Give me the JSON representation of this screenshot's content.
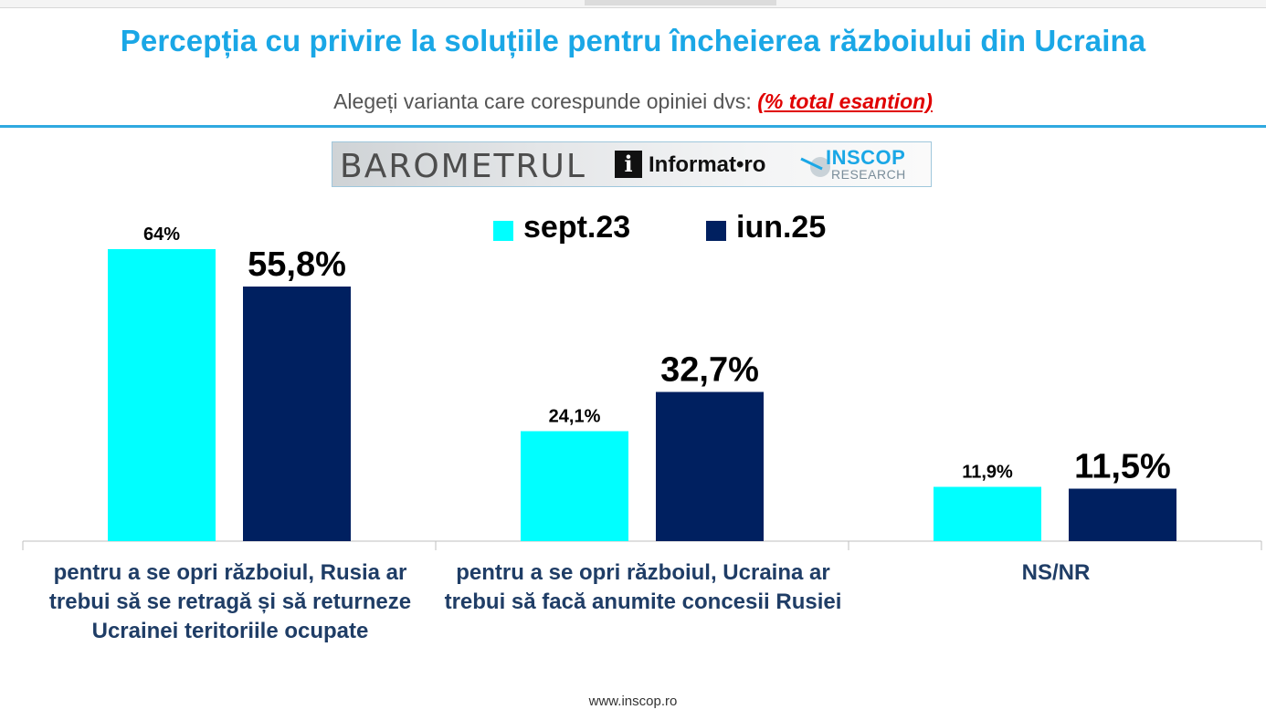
{
  "header": {
    "title": "Percepția cu privire la soluțiile pentru încheierea războiului din Ucraina",
    "subtitle": "Alegeți varianta care corespunde opiniei dvs:",
    "subtitle_note": "(% total esantion)"
  },
  "logo": {
    "barometer": "BAROMETRUL",
    "informat_mark": "i",
    "informat": "Informat•ro",
    "inscop": "INSCOP",
    "research": "RESEARCH"
  },
  "footer": {
    "url": "www.inscop.ro"
  },
  "chart_data": {
    "type": "bar",
    "categories": [
      "pentru a se opri războiul, Rusia ar trebui să se retragă și să returneze Ucrainei teritoriile ocupate",
      "pentru a se opri războiul, Ucraina ar trebui să facă anumite concesii Rusiei",
      "NS/NR"
    ],
    "series": [
      {
        "name": "sept.23",
        "values": [
          64,
          24.1,
          11.9
        ],
        "labels": [
          "64%",
          "24,1%",
          "11,9%"
        ],
        "color": "#00ffff"
      },
      {
        "name": "iun.25",
        "values": [
          55.8,
          32.7,
          11.5
        ],
        "labels": [
          "55,8%",
          "32,7%",
          "11,5%"
        ],
        "color": "#002060"
      }
    ],
    "ylim": [
      0,
      70
    ],
    "grid": false,
    "legend": "top-center"
  }
}
